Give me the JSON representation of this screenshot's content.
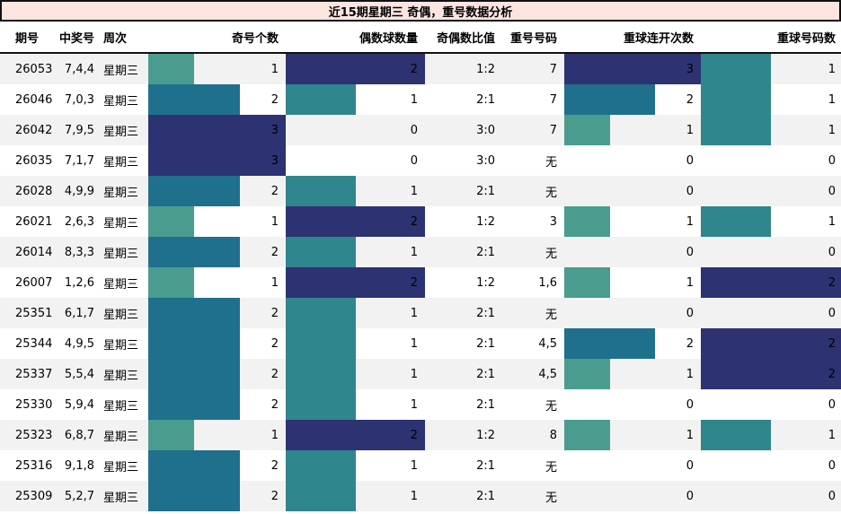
{
  "title": "近15期星期三 奇偶，重号数据分析",
  "columns": [
    "期号",
    "中奖号",
    "周次",
    "奇号个数",
    "偶数球数量",
    "奇偶数比值",
    "重号号码",
    "重球连开次数",
    "重球号码数"
  ],
  "colors": {
    "title_bg": "#fce4df",
    "border": "#111111",
    "row_alt_bg": "#f2f2f2",
    "bar_green": "#4a9d8e",
    "bar_teal": "#2f868d",
    "bar_dark_teal": "#1f708d",
    "bar_navy": "#2d3273"
  },
  "bar_scales": {
    "odd_count": {
      "max": 3,
      "color_by_value": {
        "1": "#4a9d8e",
        "2": "#1f708d",
        "3": "#2d3273"
      }
    },
    "even_count": {
      "max": 2,
      "color_by_value": {
        "1": "#2f868d",
        "2": "#2d3273"
      }
    },
    "streak": {
      "max": 3,
      "color_by_value": {
        "1": "#4a9d8e",
        "2": "#1f708d",
        "3": "#2d3273"
      }
    },
    "repeat_count": {
      "max": 2,
      "color_by_value": {
        "1": "#2f868d",
        "2": "#2d3273"
      }
    }
  },
  "rows": [
    {
      "period": "26053",
      "numbers": "7,4,4",
      "week": "星期三",
      "odd_count": 1,
      "even_count": 2,
      "ratio": "1:2",
      "repeat_numbers": "7",
      "streak": 3,
      "repeat_count": 1
    },
    {
      "period": "26046",
      "numbers": "7,0,3",
      "week": "星期三",
      "odd_count": 2,
      "even_count": 1,
      "ratio": "2:1",
      "repeat_numbers": "7",
      "streak": 2,
      "repeat_count": 1
    },
    {
      "period": "26042",
      "numbers": "7,9,5",
      "week": "星期三",
      "odd_count": 3,
      "even_count": 0,
      "ratio": "3:0",
      "repeat_numbers": "7",
      "streak": 1,
      "repeat_count": 1
    },
    {
      "period": "26035",
      "numbers": "7,1,7",
      "week": "星期三",
      "odd_count": 3,
      "even_count": 0,
      "ratio": "3:0",
      "repeat_numbers": "无",
      "streak": 0,
      "repeat_count": 0
    },
    {
      "period": "26028",
      "numbers": "4,9,9",
      "week": "星期三",
      "odd_count": 2,
      "even_count": 1,
      "ratio": "2:1",
      "repeat_numbers": "无",
      "streak": 0,
      "repeat_count": 0
    },
    {
      "period": "26021",
      "numbers": "2,6,3",
      "week": "星期三",
      "odd_count": 1,
      "even_count": 2,
      "ratio": "1:2",
      "repeat_numbers": "3",
      "streak": 1,
      "repeat_count": 1
    },
    {
      "period": "26014",
      "numbers": "8,3,3",
      "week": "星期三",
      "odd_count": 2,
      "even_count": 1,
      "ratio": "2:1",
      "repeat_numbers": "无",
      "streak": 0,
      "repeat_count": 0
    },
    {
      "period": "26007",
      "numbers": "1,2,6",
      "week": "星期三",
      "odd_count": 1,
      "even_count": 2,
      "ratio": "1:2",
      "repeat_numbers": "1,6",
      "streak": 1,
      "repeat_count": 2
    },
    {
      "period": "25351",
      "numbers": "6,1,7",
      "week": "星期三",
      "odd_count": 2,
      "even_count": 1,
      "ratio": "2:1",
      "repeat_numbers": "无",
      "streak": 0,
      "repeat_count": 0
    },
    {
      "period": "25344",
      "numbers": "4,9,5",
      "week": "星期三",
      "odd_count": 2,
      "even_count": 1,
      "ratio": "2:1",
      "repeat_numbers": "4,5",
      "streak": 2,
      "repeat_count": 2
    },
    {
      "period": "25337",
      "numbers": "5,5,4",
      "week": "星期三",
      "odd_count": 2,
      "even_count": 1,
      "ratio": "2:1",
      "repeat_numbers": "4,5",
      "streak": 1,
      "repeat_count": 2
    },
    {
      "period": "25330",
      "numbers": "5,9,4",
      "week": "星期三",
      "odd_count": 2,
      "even_count": 1,
      "ratio": "2:1",
      "repeat_numbers": "无",
      "streak": 0,
      "repeat_count": 0
    },
    {
      "period": "25323",
      "numbers": "6,8,7",
      "week": "星期三",
      "odd_count": 1,
      "even_count": 2,
      "ratio": "1:2",
      "repeat_numbers": "8",
      "streak": 1,
      "repeat_count": 1
    },
    {
      "period": "25316",
      "numbers": "9,1,8",
      "week": "星期三",
      "odd_count": 2,
      "even_count": 1,
      "ratio": "2:1",
      "repeat_numbers": "无",
      "streak": 0,
      "repeat_count": 0
    },
    {
      "period": "25309",
      "numbers": "5,2,7",
      "week": "星期三",
      "odd_count": 2,
      "even_count": 1,
      "ratio": "2:1",
      "repeat_numbers": "无",
      "streak": 0,
      "repeat_count": 0
    }
  ],
  "chart_data": {
    "type": "table",
    "title": "近15期星期三 奇偶，重号数据分析",
    "columns": [
      "期号",
      "中奖号",
      "周次",
      "奇号个数",
      "偶数球数量",
      "奇偶数比值",
      "重号号码",
      "重球连开次数",
      "重球号码数"
    ],
    "bar_columns": [
      "奇号个数",
      "偶数球数量",
      "重球连开次数",
      "重球号码数"
    ],
    "bar_axis_ranges": {
      "奇号个数": [
        0,
        3
      ],
      "偶数球数量": [
        0,
        2
      ],
      "重球连开次数": [
        0,
        3
      ],
      "重球号码数": [
        0,
        2
      ]
    },
    "rows": [
      [
        "26053",
        "7,4,4",
        "星期三",
        1,
        2,
        "1:2",
        "7",
        3,
        1
      ],
      [
        "26046",
        "7,0,3",
        "星期三",
        2,
        1,
        "2:1",
        "7",
        2,
        1
      ],
      [
        "26042",
        "7,9,5",
        "星期三",
        3,
        0,
        "3:0",
        "7",
        1,
        1
      ],
      [
        "26035",
        "7,1,7",
        "星期三",
        3,
        0,
        "3:0",
        "无",
        0,
        0
      ],
      [
        "26028",
        "4,9,9",
        "星期三",
        2,
        1,
        "2:1",
        "无",
        0,
        0
      ],
      [
        "26021",
        "2,6,3",
        "星期三",
        1,
        2,
        "1:2",
        "3",
        1,
        1
      ],
      [
        "26014",
        "8,3,3",
        "星期三",
        2,
        1,
        "2:1",
        "无",
        0,
        0
      ],
      [
        "26007",
        "1,2,6",
        "星期三",
        1,
        2,
        "1:2",
        "1,6",
        1,
        2
      ],
      [
        "25351",
        "6,1,7",
        "星期三",
        2,
        1,
        "2:1",
        "无",
        0,
        0
      ],
      [
        "25344",
        "4,9,5",
        "星期三",
        2,
        1,
        "2:1",
        "4,5",
        2,
        2
      ],
      [
        "25337",
        "5,5,4",
        "星期三",
        2,
        1,
        "2:1",
        "4,5",
        1,
        2
      ],
      [
        "25330",
        "5,9,4",
        "星期三",
        2,
        1,
        "2:1",
        "无",
        0,
        0
      ],
      [
        "25323",
        "6,8,7",
        "星期三",
        1,
        2,
        "1:2",
        "8",
        1,
        1
      ],
      [
        "25316",
        "9,1,8",
        "星期三",
        2,
        1,
        "2:1",
        "无",
        0,
        0
      ],
      [
        "25309",
        "5,2,7",
        "星期三",
        2,
        1,
        "2:1",
        "无",
        0,
        0
      ]
    ]
  }
}
